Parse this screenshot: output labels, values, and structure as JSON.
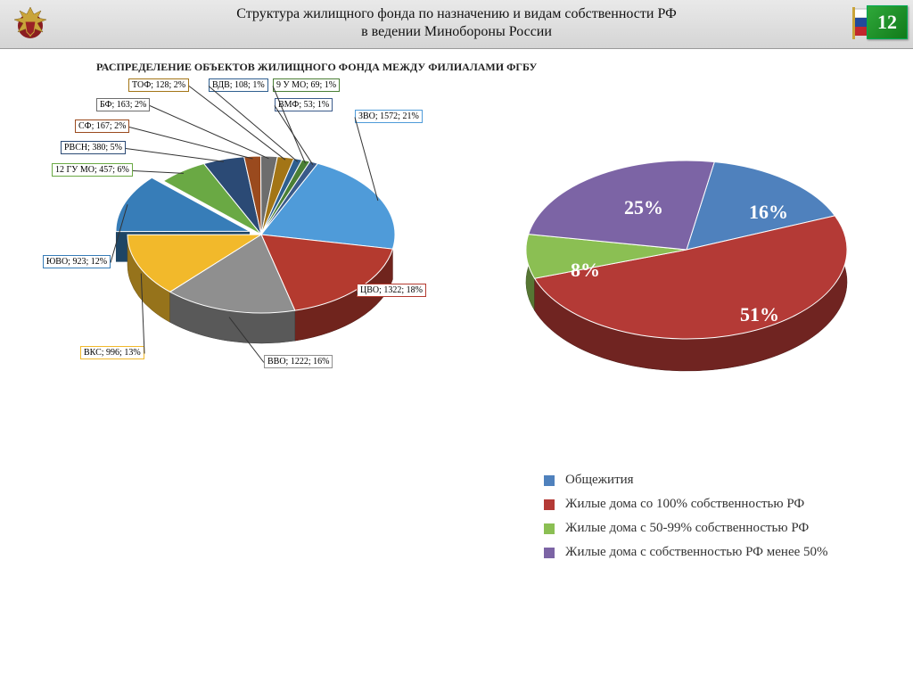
{
  "page_number": "12",
  "header": {
    "title_line1": "Структура жилищного фонда по назначению и видам собственности РФ",
    "title_line2": "в ведении Минобороны России"
  },
  "left_chart": {
    "title": "РАСПРЕДЕЛЕНИЕ ОБЪЕКТОВ ЖИЛИЩНОГО ФОНДА МЕЖДУ ФИЛИАЛАМИ ФГБУ",
    "type": "pie3d",
    "explode_index": 4,
    "slices": [
      {
        "label": "ЗВО; 1572; 21%",
        "value": 21,
        "color": "#4f9bd9",
        "border": "#4f9bd9"
      },
      {
        "label": "ЦВО; 1322; 18%",
        "value": 18,
        "color": "#b43a2f",
        "border": "#b43a2f"
      },
      {
        "label": "ВВО; 1222; 16%",
        "value": 16,
        "color": "#8f8f8f",
        "border": "#8f8f8f"
      },
      {
        "label": "ВКС; 996; 13%",
        "value": 13,
        "color": "#f2b92b",
        "border": "#f2b92b"
      },
      {
        "label": "ЮВО; 923; 12%",
        "value": 12,
        "color": "#377db8",
        "border": "#377db8"
      },
      {
        "label": "12 ГУ МО; 457; 6%",
        "value": 6,
        "color": "#6aa944",
        "border": "#6aa944"
      },
      {
        "label": "РВСН; 380; 5%",
        "value": 5,
        "color": "#2b4a75",
        "border": "#2b4a75"
      },
      {
        "label": "СФ; 167; 2%",
        "value": 2,
        "color": "#9a4a1e",
        "border": "#9a4a1e"
      },
      {
        "label": "БФ; 163; 2%",
        "value": 2,
        "color": "#6d6d6d",
        "border": "#6d6d6d"
      },
      {
        "label": "ТОФ; 128; 2%",
        "value": 2,
        "color": "#a37516",
        "border": "#a37516"
      },
      {
        "label": "ВДВ; 108; 1%",
        "value": 1,
        "color": "#2f5f8f",
        "border": "#2f5f8f"
      },
      {
        "label": "9 У МО; 69; 1%",
        "value": 1,
        "color": "#4a7f35",
        "border": "#4a7f35"
      },
      {
        "label": "ВМФ; 53; 1%",
        "value": 1,
        "color": "#3a5a8a",
        "border": "#3a5a8a"
      }
    ]
  },
  "right_chart": {
    "type": "pie3d",
    "slices": [
      {
        "label": "Общежития",
        "pct": "16%",
        "value": 16,
        "color": "#4f81bd"
      },
      {
        "label": "Жилые дома со 100% собственностью РФ",
        "pct": "51%",
        "value": 51,
        "color": "#b43a36"
      },
      {
        "label": "Жилые дома с 50-99% собственностью РФ",
        "pct": "8%",
        "value": 8,
        "color": "#8bbf53"
      },
      {
        "label": "Жилые дома с собственностью РФ менее 50%",
        "pct": "25%",
        "value": 25,
        "color": "#7c64a5"
      }
    ]
  },
  "colors": {
    "header_grad_top": "#e9e9e9",
    "header_grad_bot": "#d5d5d5",
    "flag_white": "#ffffff",
    "flag_blue": "#214a9c",
    "flag_red": "#c1272d",
    "emblem_shield": "#8a1d20",
    "emblem_gold": "#c9a43a"
  }
}
